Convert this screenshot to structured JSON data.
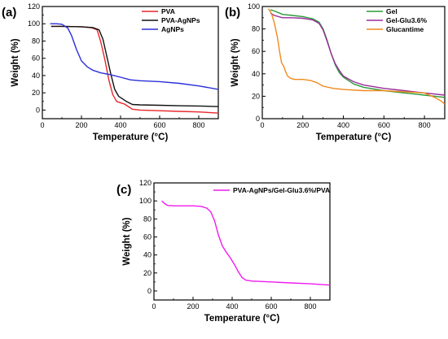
{
  "chart_data": [
    {
      "type": "line",
      "panel_label": "(a)",
      "xlabel": "Temperature (°C)",
      "ylabel": "Weight (%)",
      "xlim": [
        0,
        900
      ],
      "ylim": [
        -10,
        120
      ],
      "xticks": [
        0,
        200,
        400,
        600,
        800
      ],
      "yticks": [
        0,
        20,
        40,
        60,
        80,
        100,
        120
      ],
      "legend_position": "top-right",
      "grid": false,
      "series": [
        {
          "name": "PVA",
          "color": "#e8262a",
          "points": [
            [
              45,
              97
            ],
            [
              100,
              97
            ],
            [
              200,
              96.5
            ],
            [
              250,
              95.5
            ],
            [
              280,
              93
            ],
            [
              300,
              78
            ],
            [
              320,
              58
            ],
            [
              340,
              35
            ],
            [
              360,
              18
            ],
            [
              380,
              10
            ],
            [
              400,
              8.5
            ],
            [
              420,
              7
            ],
            [
              440,
              4
            ],
            [
              460,
              1
            ],
            [
              500,
              0
            ],
            [
              600,
              -0.8
            ],
            [
              700,
              -1.5
            ],
            [
              800,
              -2.2
            ],
            [
              900,
              -3.5
            ]
          ]
        },
        {
          "name": "PVA-AgNPs",
          "color": "#111111",
          "points": [
            [
              45,
              97
            ],
            [
              100,
              97
            ],
            [
              200,
              96.5
            ],
            [
              260,
              95.5
            ],
            [
              290,
              93
            ],
            [
              310,
              82
            ],
            [
              330,
              62
            ],
            [
              350,
              42
            ],
            [
              370,
              24
            ],
            [
              390,
              16
            ],
            [
              410,
              13
            ],
            [
              430,
              10
            ],
            [
              460,
              6.5
            ],
            [
              500,
              6
            ],
            [
              600,
              5.5
            ],
            [
              700,
              5
            ],
            [
              800,
              4.7
            ],
            [
              900,
              4
            ]
          ]
        },
        {
          "name": "AgNPs",
          "color": "#2b2fd8",
          "points": [
            [
              40,
              100
            ],
            [
              70,
              100
            ],
            [
              100,
              99.5
            ],
            [
              130,
              95
            ],
            [
              150,
              86
            ],
            [
              175,
              70
            ],
            [
              200,
              57
            ],
            [
              230,
              50
            ],
            [
              260,
              46
            ],
            [
              300,
              43
            ],
            [
              350,
              41
            ],
            [
              400,
              38
            ],
            [
              450,
              35
            ],
            [
              500,
              34
            ],
            [
              600,
              33
            ],
            [
              700,
              31
            ],
            [
              800,
              28
            ],
            [
              900,
              24
            ]
          ]
        }
      ]
    },
    {
      "type": "line",
      "panel_label": "(b)",
      "xlabel": "Temperature (°C)",
      "ylabel": "Weight (%)",
      "xlim": [
        0,
        900
      ],
      "ylim": [
        0,
        100
      ],
      "xticks": [
        0,
        200,
        400,
        600,
        800
      ],
      "yticks": [
        0,
        20,
        40,
        60,
        80,
        100
      ],
      "legend_position": "top-right",
      "grid": false,
      "series": [
        {
          "name": "Gel",
          "color": "#2a9a3a",
          "points": [
            [
              40,
              97
            ],
            [
              60,
              96
            ],
            [
              100,
              93
            ],
            [
              150,
              92
            ],
            [
              200,
              91
            ],
            [
              250,
              89
            ],
            [
              280,
              86
            ],
            [
              300,
              80
            ],
            [
              320,
              70
            ],
            [
              340,
              58
            ],
            [
              360,
              48
            ],
            [
              380,
              41
            ],
            [
              400,
              37
            ],
            [
              450,
              31
            ],
            [
              500,
              28
            ],
            [
              600,
              25
            ],
            [
              700,
              23
            ],
            [
              800,
              21
            ],
            [
              900,
              19
            ]
          ]
        },
        {
          "name": "Gel-Glu3.6%",
          "color": "#9a2c9a",
          "points": [
            [
              40,
              94
            ],
            [
              60,
              92
            ],
            [
              100,
              90
            ],
            [
              150,
              90
            ],
            [
              200,
              89.5
            ],
            [
              250,
              88
            ],
            [
              280,
              85
            ],
            [
              300,
              79
            ],
            [
              320,
              69
            ],
            [
              340,
              58
            ],
            [
              360,
              49
            ],
            [
              380,
              43
            ],
            [
              400,
              38
            ],
            [
              450,
              33
            ],
            [
              500,
              30
            ],
            [
              600,
              27
            ],
            [
              700,
              25
            ],
            [
              800,
              23
            ],
            [
              900,
              21
            ]
          ]
        },
        {
          "name": "Glucantime",
          "color": "#f08a1c",
          "points": [
            [
              30,
              98
            ],
            [
              45,
              94
            ],
            [
              60,
              85
            ],
            [
              75,
              72
            ],
            [
              85,
              60
            ],
            [
              95,
              50
            ],
            [
              105,
              47
            ],
            [
              115,
              42
            ],
            [
              125,
              38
            ],
            [
              140,
              36
            ],
            [
              160,
              35
            ],
            [
              200,
              35
            ],
            [
              240,
              34
            ],
            [
              270,
              32
            ],
            [
              300,
              29
            ],
            [
              350,
              27
            ],
            [
              400,
              26
            ],
            [
              500,
              25
            ],
            [
              600,
              25
            ],
            [
              700,
              24
            ],
            [
              800,
              23
            ],
            [
              850,
              19
            ],
            [
              880,
              16
            ],
            [
              900,
              13
            ]
          ]
        }
      ]
    },
    {
      "type": "line",
      "panel_label": "(c)",
      "xlabel": "Temperature (°C)",
      "ylabel": "Weight (%)",
      "xlim": [
        0,
        900
      ],
      "ylim": [
        -10,
        120
      ],
      "xticks": [
        0,
        200,
        400,
        600,
        800
      ],
      "yticks": [
        0,
        20,
        40,
        60,
        80,
        100,
        120
      ],
      "legend_position": "top-right",
      "grid": false,
      "series": [
        {
          "name": "PVA-AgNPs/Gel-Glu3.6%/PVA",
          "color": "#ee1bee",
          "points": [
            [
              40,
              100
            ],
            [
              55,
              97
            ],
            [
              70,
              95
            ],
            [
              100,
              94.5
            ],
            [
              200,
              94.5
            ],
            [
              240,
              94
            ],
            [
              270,
              92
            ],
            [
              290,
              88
            ],
            [
              310,
              78
            ],
            [
              330,
              62
            ],
            [
              350,
              50
            ],
            [
              370,
              43
            ],
            [
              390,
              37
            ],
            [
              410,
              30
            ],
            [
              430,
              22
            ],
            [
              450,
              15
            ],
            [
              470,
              12
            ],
            [
              500,
              11
            ],
            [
              600,
              10
            ],
            [
              700,
              9
            ],
            [
              800,
              8
            ],
            [
              900,
              6.5
            ]
          ]
        }
      ]
    }
  ]
}
